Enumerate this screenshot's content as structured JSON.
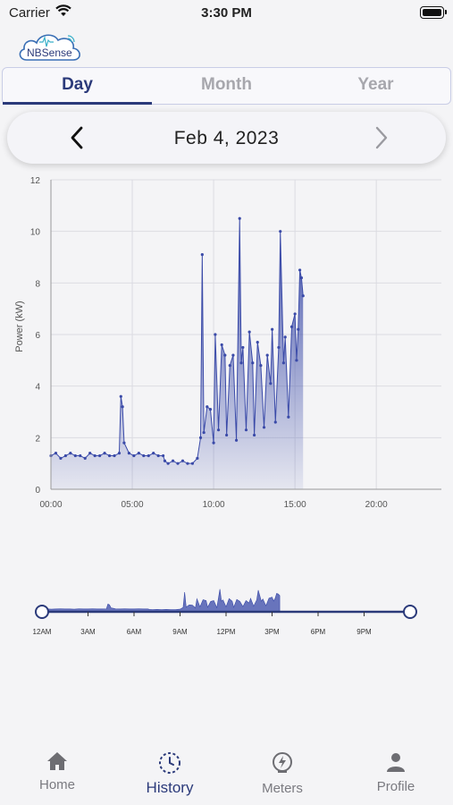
{
  "status_bar": {
    "carrier": "Carrier",
    "time": "3:30 PM"
  },
  "logo": {
    "text": "NBSense"
  },
  "tabs": [
    {
      "label": "Day",
      "active": true
    },
    {
      "label": "Month",
      "active": false
    },
    {
      "label": "Year",
      "active": false
    }
  ],
  "date_nav": {
    "date": "Feb 4, 2023",
    "prev_icon": "chevron-left-icon",
    "next_icon": "chevron-right-icon"
  },
  "colors": {
    "accent": "#2b3a7a",
    "series": "#3a4aa8",
    "inactive": "#7a7a80",
    "background": "#f4f4f6"
  },
  "chart_data": [
    {
      "type": "line",
      "title": "",
      "xlabel": "",
      "ylabel": "Power (kW)",
      "x_unit": "hours",
      "x_ticks": [
        0,
        5,
        10,
        15,
        20
      ],
      "x_tick_labels": [
        "00:00",
        "05:00",
        "10:00",
        "15:00",
        "20:00"
      ],
      "y_ticks": [
        0,
        2,
        4,
        6,
        8,
        10,
        12
      ],
      "y_tick_labels": [
        "0",
        "2",
        "4",
        "6",
        "8",
        "10",
        "12"
      ],
      "xlim": [
        0,
        24
      ],
      "ylim": [
        0,
        12
      ],
      "grid": true,
      "series": [
        {
          "fill": "area-gradient",
          "x": [
            0.0,
            0.3,
            0.6,
            0.9,
            1.2,
            1.5,
            1.8,
            2.1,
            2.4,
            2.7,
            3.0,
            3.3,
            3.6,
            3.9,
            4.2,
            4.3,
            4.4,
            4.5,
            4.8,
            5.1,
            5.4,
            5.7,
            6.0,
            6.3,
            6.6,
            6.9,
            7.0,
            7.2,
            7.5,
            7.8,
            8.1,
            8.4,
            8.7,
            9.0,
            9.2,
            9.3,
            9.4,
            9.6,
            9.8,
            10.0,
            10.1,
            10.3,
            10.5,
            10.7,
            10.8,
            11.0,
            11.2,
            11.4,
            11.6,
            11.7,
            11.8,
            12.0,
            12.2,
            12.4,
            12.5,
            12.7,
            12.9,
            13.1,
            13.3,
            13.5,
            13.6,
            13.8,
            14.0,
            14.1,
            14.3,
            14.4,
            14.6,
            14.8,
            15.0,
            15.1,
            15.2,
            15.3,
            15.4,
            15.5
          ],
          "y": [
            1.3,
            1.4,
            1.2,
            1.3,
            1.4,
            1.3,
            1.3,
            1.2,
            1.4,
            1.3,
            1.3,
            1.4,
            1.3,
            1.3,
            1.4,
            3.6,
            3.2,
            1.8,
            1.4,
            1.3,
            1.4,
            1.3,
            1.3,
            1.4,
            1.3,
            1.3,
            1.1,
            1.0,
            1.1,
            1.0,
            1.1,
            1.0,
            1.0,
            1.2,
            2.0,
            9.1,
            2.2,
            3.2,
            3.1,
            1.8,
            6.0,
            2.3,
            5.6,
            5.2,
            2.1,
            4.8,
            5.2,
            1.9,
            10.5,
            4.9,
            5.5,
            2.3,
            6.1,
            4.9,
            2.1,
            5.7,
            4.8,
            2.4,
            5.2,
            4.1,
            6.2,
            2.6,
            5.5,
            10.0,
            4.9,
            5.9,
            2.8,
            6.3,
            6.8,
            5.0,
            6.2,
            8.5,
            8.2,
            7.5
          ]
        }
      ]
    },
    {
      "type": "area",
      "title": "",
      "x_unit": "hours",
      "x_ticks": [
        0,
        3,
        6,
        9,
        12,
        15,
        18,
        21
      ],
      "x_tick_labels": [
        "12AM",
        "3AM",
        "6AM",
        "9AM",
        "12PM",
        "3PM",
        "6PM",
        "9PM"
      ],
      "xlim": [
        0,
        24
      ],
      "selection_range": [
        0,
        24
      ]
    }
  ],
  "bottom_nav": [
    {
      "label": "Home",
      "icon": "home-icon",
      "active": false
    },
    {
      "label": "History",
      "icon": "history-clock-icon",
      "active": true
    },
    {
      "label": "Meters",
      "icon": "meter-gauge-icon",
      "active": false
    },
    {
      "label": "Profile",
      "icon": "person-icon",
      "active": false
    }
  ]
}
